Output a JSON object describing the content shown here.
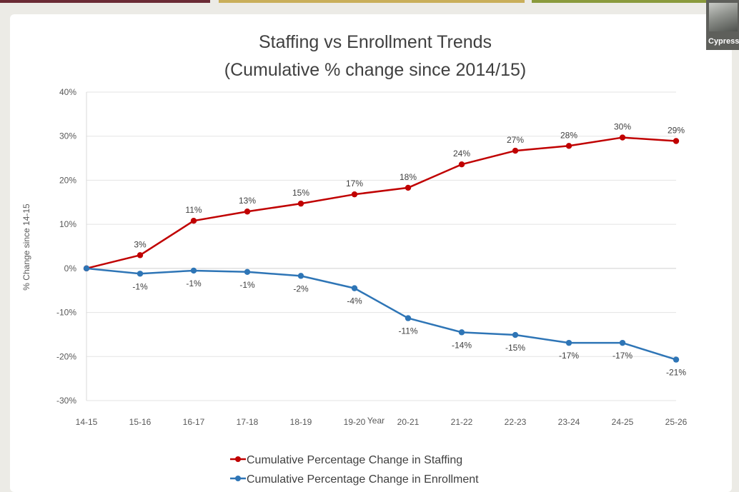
{
  "video": {
    "participant_name": "Cypress"
  },
  "chart_data": {
    "type": "line",
    "title_line1": "Staffing vs Enrollment Trends",
    "title_line2": "(Cumulative % change since 2014/15)",
    "xlabel": "Year",
    "ylabel": "% Change since 14-15",
    "ylim": [
      -30,
      40
    ],
    "yticks": [
      40,
      30,
      20,
      10,
      0,
      -10,
      -20,
      -30
    ],
    "ytick_labels": [
      "40%",
      "30%",
      "20%",
      "10%",
      "0%",
      "-10%",
      "-20%",
      "-30%"
    ],
    "categories": [
      "14-15",
      "15-16",
      "16-17",
      "17-18",
      "18-19",
      "19-20",
      "20-21",
      "21-22",
      "22-23",
      "23-24",
      "24-25",
      "25-26"
    ],
    "grid": "horizontal",
    "legend_position": "bottom",
    "series": [
      {
        "name": "Cumulative Percentage Change in Staffing",
        "color": "#c00000",
        "label_position": "above",
        "values": [
          0,
          3,
          10.8,
          12.9,
          14.7,
          16.8,
          18.3,
          23.6,
          26.7,
          27.8,
          29.7,
          28.9
        ],
        "data_labels": [
          "",
          "3%",
          "11%",
          "13%",
          "15%",
          "17%",
          "18%",
          "24%",
          "27%",
          "28%",
          "30%",
          "29%"
        ]
      },
      {
        "name": "Cumulative Percentage Change in Enrollment",
        "color": "#2e75b6",
        "label_position": "below",
        "values": [
          0,
          -1.2,
          -0.5,
          -0.8,
          -1.7,
          -4.5,
          -11.3,
          -14.5,
          -15.1,
          -16.9,
          -16.9,
          -20.7
        ],
        "data_labels": [
          "",
          "-1%",
          "-1%",
          "-1%",
          "-2%",
          "-4%",
          "-11%",
          "-14%",
          "-15%",
          "-17%",
          "-17%",
          "-21%"
        ]
      }
    ]
  }
}
